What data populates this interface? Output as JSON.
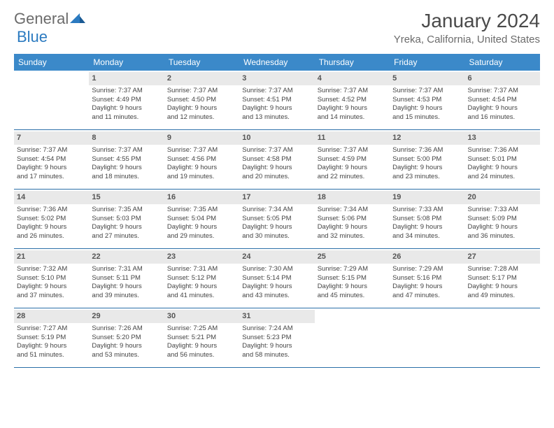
{
  "logo": {
    "text1": "General",
    "text2": "Blue"
  },
  "title": "January 2024",
  "location": "Yreka, California, United States",
  "day_headers": [
    "Sunday",
    "Monday",
    "Tuesday",
    "Wednesday",
    "Thursday",
    "Friday",
    "Saturday"
  ],
  "colors": {
    "header_bg": "#3b89c9",
    "header_text": "#ffffff",
    "row_border": "#2b6fa8",
    "daynum_bg": "#e9e9e9",
    "text": "#4a4a4a"
  },
  "weeks": [
    [
      {
        "num": "",
        "lines": []
      },
      {
        "num": "1",
        "lines": [
          "Sunrise: 7:37 AM",
          "Sunset: 4:49 PM",
          "Daylight: 9 hours",
          "and 11 minutes."
        ]
      },
      {
        "num": "2",
        "lines": [
          "Sunrise: 7:37 AM",
          "Sunset: 4:50 PM",
          "Daylight: 9 hours",
          "and 12 minutes."
        ]
      },
      {
        "num": "3",
        "lines": [
          "Sunrise: 7:37 AM",
          "Sunset: 4:51 PM",
          "Daylight: 9 hours",
          "and 13 minutes."
        ]
      },
      {
        "num": "4",
        "lines": [
          "Sunrise: 7:37 AM",
          "Sunset: 4:52 PM",
          "Daylight: 9 hours",
          "and 14 minutes."
        ]
      },
      {
        "num": "5",
        "lines": [
          "Sunrise: 7:37 AM",
          "Sunset: 4:53 PM",
          "Daylight: 9 hours",
          "and 15 minutes."
        ]
      },
      {
        "num": "6",
        "lines": [
          "Sunrise: 7:37 AM",
          "Sunset: 4:54 PM",
          "Daylight: 9 hours",
          "and 16 minutes."
        ]
      }
    ],
    [
      {
        "num": "7",
        "lines": [
          "Sunrise: 7:37 AM",
          "Sunset: 4:54 PM",
          "Daylight: 9 hours",
          "and 17 minutes."
        ]
      },
      {
        "num": "8",
        "lines": [
          "Sunrise: 7:37 AM",
          "Sunset: 4:55 PM",
          "Daylight: 9 hours",
          "and 18 minutes."
        ]
      },
      {
        "num": "9",
        "lines": [
          "Sunrise: 7:37 AM",
          "Sunset: 4:56 PM",
          "Daylight: 9 hours",
          "and 19 minutes."
        ]
      },
      {
        "num": "10",
        "lines": [
          "Sunrise: 7:37 AM",
          "Sunset: 4:58 PM",
          "Daylight: 9 hours",
          "and 20 minutes."
        ]
      },
      {
        "num": "11",
        "lines": [
          "Sunrise: 7:37 AM",
          "Sunset: 4:59 PM",
          "Daylight: 9 hours",
          "and 22 minutes."
        ]
      },
      {
        "num": "12",
        "lines": [
          "Sunrise: 7:36 AM",
          "Sunset: 5:00 PM",
          "Daylight: 9 hours",
          "and 23 minutes."
        ]
      },
      {
        "num": "13",
        "lines": [
          "Sunrise: 7:36 AM",
          "Sunset: 5:01 PM",
          "Daylight: 9 hours",
          "and 24 minutes."
        ]
      }
    ],
    [
      {
        "num": "14",
        "lines": [
          "Sunrise: 7:36 AM",
          "Sunset: 5:02 PM",
          "Daylight: 9 hours",
          "and 26 minutes."
        ]
      },
      {
        "num": "15",
        "lines": [
          "Sunrise: 7:35 AM",
          "Sunset: 5:03 PM",
          "Daylight: 9 hours",
          "and 27 minutes."
        ]
      },
      {
        "num": "16",
        "lines": [
          "Sunrise: 7:35 AM",
          "Sunset: 5:04 PM",
          "Daylight: 9 hours",
          "and 29 minutes."
        ]
      },
      {
        "num": "17",
        "lines": [
          "Sunrise: 7:34 AM",
          "Sunset: 5:05 PM",
          "Daylight: 9 hours",
          "and 30 minutes."
        ]
      },
      {
        "num": "18",
        "lines": [
          "Sunrise: 7:34 AM",
          "Sunset: 5:06 PM",
          "Daylight: 9 hours",
          "and 32 minutes."
        ]
      },
      {
        "num": "19",
        "lines": [
          "Sunrise: 7:33 AM",
          "Sunset: 5:08 PM",
          "Daylight: 9 hours",
          "and 34 minutes."
        ]
      },
      {
        "num": "20",
        "lines": [
          "Sunrise: 7:33 AM",
          "Sunset: 5:09 PM",
          "Daylight: 9 hours",
          "and 36 minutes."
        ]
      }
    ],
    [
      {
        "num": "21",
        "lines": [
          "Sunrise: 7:32 AM",
          "Sunset: 5:10 PM",
          "Daylight: 9 hours",
          "and 37 minutes."
        ]
      },
      {
        "num": "22",
        "lines": [
          "Sunrise: 7:31 AM",
          "Sunset: 5:11 PM",
          "Daylight: 9 hours",
          "and 39 minutes."
        ]
      },
      {
        "num": "23",
        "lines": [
          "Sunrise: 7:31 AM",
          "Sunset: 5:12 PM",
          "Daylight: 9 hours",
          "and 41 minutes."
        ]
      },
      {
        "num": "24",
        "lines": [
          "Sunrise: 7:30 AM",
          "Sunset: 5:14 PM",
          "Daylight: 9 hours",
          "and 43 minutes."
        ]
      },
      {
        "num": "25",
        "lines": [
          "Sunrise: 7:29 AM",
          "Sunset: 5:15 PM",
          "Daylight: 9 hours",
          "and 45 minutes."
        ]
      },
      {
        "num": "26",
        "lines": [
          "Sunrise: 7:29 AM",
          "Sunset: 5:16 PM",
          "Daylight: 9 hours",
          "and 47 minutes."
        ]
      },
      {
        "num": "27",
        "lines": [
          "Sunrise: 7:28 AM",
          "Sunset: 5:17 PM",
          "Daylight: 9 hours",
          "and 49 minutes."
        ]
      }
    ],
    [
      {
        "num": "28",
        "lines": [
          "Sunrise: 7:27 AM",
          "Sunset: 5:19 PM",
          "Daylight: 9 hours",
          "and 51 minutes."
        ]
      },
      {
        "num": "29",
        "lines": [
          "Sunrise: 7:26 AM",
          "Sunset: 5:20 PM",
          "Daylight: 9 hours",
          "and 53 minutes."
        ]
      },
      {
        "num": "30",
        "lines": [
          "Sunrise: 7:25 AM",
          "Sunset: 5:21 PM",
          "Daylight: 9 hours",
          "and 56 minutes."
        ]
      },
      {
        "num": "31",
        "lines": [
          "Sunrise: 7:24 AM",
          "Sunset: 5:23 PM",
          "Daylight: 9 hours",
          "and 58 minutes."
        ]
      },
      {
        "num": "",
        "lines": []
      },
      {
        "num": "",
        "lines": []
      },
      {
        "num": "",
        "lines": []
      }
    ]
  ]
}
